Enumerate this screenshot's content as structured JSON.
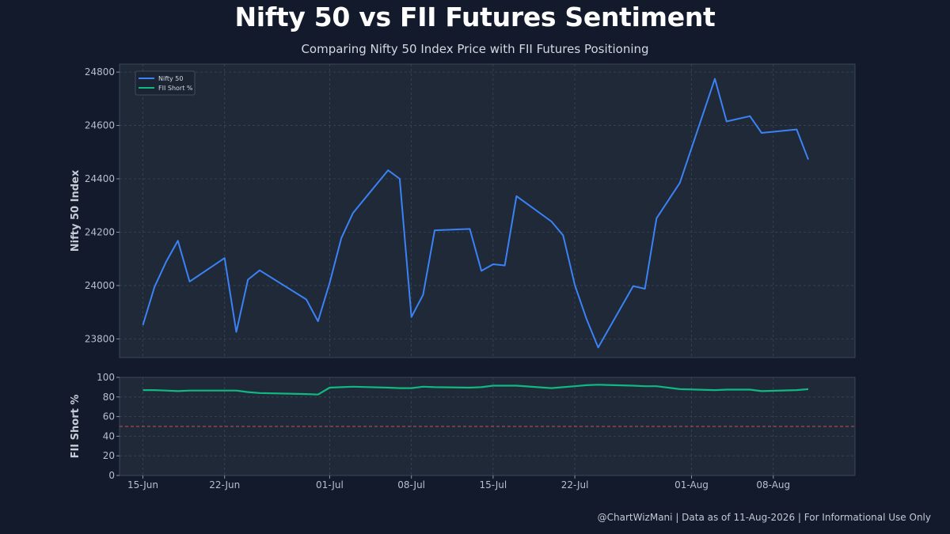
{
  "title": "Nifty 50 vs FII Futures Sentiment",
  "subtitle": "Comparing Nifty 50 Index Price with FII Futures Positioning",
  "footer": "@ChartWizMani | Data as of 11-Aug-2026 | For Informational Use Only",
  "colors": {
    "background": "#121a2b",
    "panel": "#1f2938",
    "nifty_line": "#3b82f6",
    "fii_line": "#10b981",
    "reference_line": "#e0525a"
  },
  "chart_data": [
    {
      "type": "line",
      "ylabel": "Nifty 50 Index",
      "ylim": [
        23730,
        24830
      ],
      "yticks": [
        23800,
        24000,
        24200,
        24400,
        24600,
        24800
      ],
      "xlim": [
        "2026-06-13",
        "2026-08-15"
      ],
      "grid": true,
      "legend_position": "top-left",
      "legend": [
        "Nifty 50",
        "FII Short %"
      ],
      "series": [
        {
          "name": "Nifty 50",
          "x": [
            "2026-06-15",
            "2026-06-16",
            "2026-06-17",
            "2026-06-18",
            "2026-06-19",
            "2026-06-22",
            "2026-06-23",
            "2026-06-24",
            "2026-06-25",
            "2026-06-29",
            "2026-06-30",
            "2026-07-01",
            "2026-07-02",
            "2026-07-03",
            "2026-07-06",
            "2026-07-07",
            "2026-07-08",
            "2026-07-09",
            "2026-07-10",
            "2026-07-13",
            "2026-07-14",
            "2026-07-15",
            "2026-07-16",
            "2026-07-17",
            "2026-07-20",
            "2026-07-21",
            "2026-07-22",
            "2026-07-23",
            "2026-07-24",
            "2026-07-27",
            "2026-07-28",
            "2026-07-29",
            "2026-07-31",
            "2026-08-03",
            "2026-08-04",
            "2026-08-06",
            "2026-08-07",
            "2026-08-10",
            "2026-08-11"
          ],
          "values": [
            23852,
            23995,
            24090,
            24168,
            24015,
            24103,
            23826,
            24022,
            24057,
            23948,
            23866,
            24010,
            24178,
            24272,
            24432,
            24400,
            23882,
            23965,
            24207,
            24212,
            24055,
            24080,
            24075,
            24335,
            24240,
            24188,
            24002,
            23875,
            23768,
            23998,
            23988,
            24252,
            24385,
            24775,
            24615,
            24635,
            24572,
            24585,
            24472
          ]
        }
      ]
    },
    {
      "type": "line",
      "ylabel": "FII Short %",
      "ylim": [
        0,
        100
      ],
      "yticks": [
        0,
        20,
        40,
        60,
        80,
        100
      ],
      "xticks": [
        "15-Jun",
        "22-Jun",
        "01-Jul",
        "08-Jul",
        "15-Jul",
        "22-Jul",
        "01-Aug",
        "08-Aug"
      ],
      "reference_line": 50,
      "grid": true,
      "series": [
        {
          "name": "FII Short %",
          "x": [
            "2026-06-15",
            "2026-06-16",
            "2026-06-17",
            "2026-06-18",
            "2026-06-19",
            "2026-06-22",
            "2026-06-23",
            "2026-06-24",
            "2026-06-25",
            "2026-06-29",
            "2026-06-30",
            "2026-07-01",
            "2026-07-02",
            "2026-07-03",
            "2026-07-06",
            "2026-07-07",
            "2026-07-08",
            "2026-07-09",
            "2026-07-10",
            "2026-07-13",
            "2026-07-14",
            "2026-07-15",
            "2026-07-16",
            "2026-07-17",
            "2026-07-20",
            "2026-07-21",
            "2026-07-22",
            "2026-07-23",
            "2026-07-24",
            "2026-07-27",
            "2026-07-28",
            "2026-07-29",
            "2026-07-31",
            "2026-08-03",
            "2026-08-04",
            "2026-08-06",
            "2026-08-07",
            "2026-08-10",
            "2026-08-11"
          ],
          "values": [
            87,
            87,
            86.5,
            86,
            86.5,
            86.5,
            86.5,
            85,
            84,
            83,
            82.5,
            89.5,
            90,
            90.5,
            89.5,
            89,
            89,
            90.5,
            90,
            89.5,
            90,
            91.5,
            91.5,
            91.5,
            89,
            90,
            91,
            92,
            92.5,
            91.5,
            91,
            91,
            88,
            87,
            87.5,
            87.5,
            86,
            87,
            88
          ]
        }
      ]
    }
  ]
}
